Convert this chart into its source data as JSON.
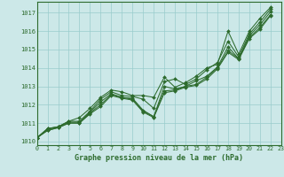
{
  "title": "Graphe pression niveau de la mer (hPa)",
  "bg_color": "#cce8e8",
  "line_color": "#2d6b2d",
  "grid_color": "#99cccc",
  "xlim": [
    0,
    23
  ],
  "ylim": [
    1009.8,
    1017.6
  ],
  "yticks": [
    1010,
    1011,
    1012,
    1013,
    1014,
    1015,
    1016,
    1017
  ],
  "xticks": [
    0,
    1,
    2,
    3,
    4,
    5,
    6,
    7,
    8,
    9,
    10,
    11,
    12,
    13,
    14,
    15,
    16,
    17,
    18,
    19,
    20,
    21,
    22,
    23
  ],
  "series": [
    [
      1010.2,
      1010.7,
      1010.8,
      1011.1,
      1011.3,
      1011.8,
      1012.4,
      1012.8,
      1012.7,
      1012.5,
      1012.5,
      1012.4,
      1013.5,
      1012.95,
      1013.2,
      1013.55,
      1014.0,
      1014.2,
      1016.0,
      1014.75,
      1016.0,
      1016.7,
      1017.3
    ],
    [
      1010.2,
      1010.7,
      1010.8,
      1011.1,
      1011.1,
      1011.65,
      1012.3,
      1012.7,
      1012.5,
      1012.45,
      1012.3,
      1011.8,
      1013.25,
      1013.4,
      1013.1,
      1013.4,
      1013.9,
      1014.3,
      1015.45,
      1014.6,
      1015.85,
      1016.5,
      1017.2
    ],
    [
      1010.2,
      1010.65,
      1010.8,
      1011.05,
      1011.05,
      1011.6,
      1012.15,
      1012.6,
      1012.4,
      1012.35,
      1011.7,
      1011.35,
      1013.0,
      1012.85,
      1013.0,
      1013.3,
      1013.55,
      1014.05,
      1015.15,
      1014.5,
      1015.75,
      1016.35,
      1017.05
    ],
    [
      1010.2,
      1010.6,
      1010.75,
      1011.0,
      1011.0,
      1011.55,
      1012.0,
      1012.55,
      1012.4,
      1012.3,
      1011.65,
      1011.35,
      1012.75,
      1012.8,
      1013.0,
      1013.1,
      1013.5,
      1014.0,
      1014.95,
      1014.5,
      1015.65,
      1016.2,
      1016.9
    ],
    [
      1010.2,
      1010.6,
      1010.75,
      1011.0,
      1011.0,
      1011.5,
      1011.9,
      1012.5,
      1012.35,
      1012.25,
      1011.6,
      1011.3,
      1012.65,
      1012.75,
      1012.95,
      1013.05,
      1013.4,
      1013.95,
      1014.85,
      1014.45,
      1015.6,
      1016.1,
      1016.85
    ]
  ]
}
